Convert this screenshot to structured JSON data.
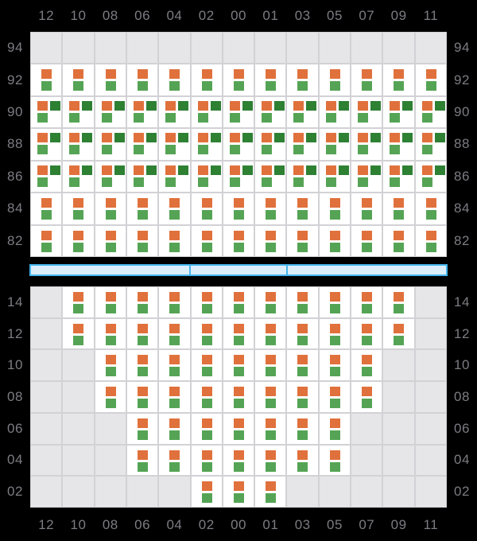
{
  "colors": {
    "page_bg": "#000000",
    "panel_empty": "#e6e6e8",
    "panel_grid_line": "#d2d2d6",
    "cell_bg": "#ffffff",
    "orange": "#e0713c",
    "green": "#55a455",
    "dark_green": "#2e8033",
    "axis_label": "#7c7c83",
    "scrollbar_fill": "#ddeefb",
    "scrollbar_border": "#45b5ec"
  },
  "chart_data": {
    "type": "heatmap",
    "x_labels": [
      "12",
      "10",
      "08",
      "06",
      "04",
      "02",
      "00",
      "01",
      "03",
      "05",
      "07",
      "09",
      "11"
    ],
    "x_axis_shown": [
      "top",
      "bottom"
    ],
    "y_axis_shown": [
      "left",
      "right"
    ],
    "cell_legend": {
      "E": "empty gray slot",
      "P": "orange square above green square",
      "T": "orange and dark-green squares on top row, green square below-left"
    },
    "panels": [
      {
        "name": "upper",
        "y_labels": [
          "94",
          "92",
          "90",
          "88",
          "86",
          "84",
          "82"
        ],
        "rows": [
          "EEEEEEEEEEEEE",
          "PPPPPPPPPPPPP",
          "TTTTTTTTTTTTT",
          "TTTTTTTTTTTTT",
          "TTTTTTTTTTTTT",
          "PPPPPPPPPPPPP",
          "PPPPPPPPPPPPP"
        ]
      },
      {
        "name": "lower",
        "y_labels": [
          "14",
          "12",
          "10",
          "08",
          "06",
          "04",
          "02"
        ],
        "rows": [
          "EPPPPPPPPPPPE",
          "EPPPPPPPPPPPE",
          "EEPPPPPPPPPEE",
          "EEPPPPPPPPPEE",
          "EEEPPPPPPPEEE",
          "EEEPPPPPPPEEE",
          "EEEEEPPPEEEEE"
        ]
      }
    ],
    "scrollbar_segments": [
      5,
      3,
      5
    ]
  }
}
